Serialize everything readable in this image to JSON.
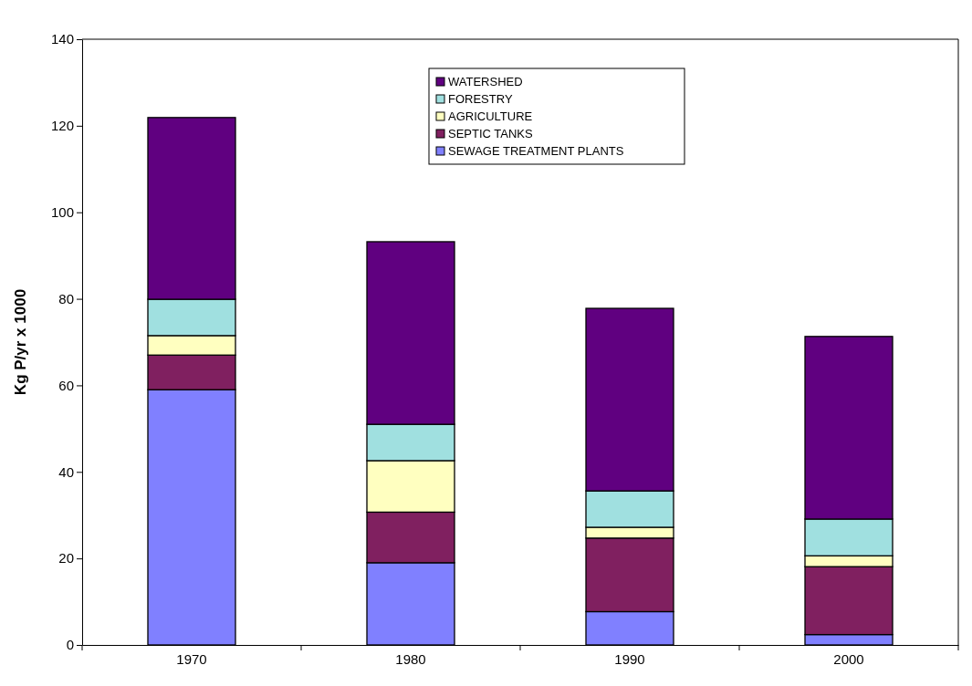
{
  "chart_data": {
    "type": "bar",
    "stacked": true,
    "ylabel": "Kg P/yr x 1000",
    "categories": [
      "1970",
      "1980",
      "1990",
      "2000"
    ],
    "series": [
      {
        "name": "SEWAGE TREATMENT PLANTS",
        "color": "#8080ff",
        "values": [
          59,
          19,
          7.7,
          2.4
        ]
      },
      {
        "name": "SEPTIC TANKS",
        "color": "#802060",
        "values": [
          8,
          11.7,
          17,
          15.7
        ]
      },
      {
        "name": "AGRICULTURE",
        "color": "#ffffc0",
        "values": [
          4.5,
          11.9,
          2.5,
          2.5
        ]
      },
      {
        "name": "FORESTRY",
        "color": "#a0e0e0",
        "values": [
          8.4,
          8.4,
          8.4,
          8.5
        ]
      },
      {
        "name": "WATERSHED",
        "color": "#600080",
        "values": [
          42,
          42.2,
          42.2,
          42.2
        ]
      }
    ],
    "ylim": [
      0,
      140
    ],
    "yticks": [
      0,
      20,
      40,
      60,
      80,
      100,
      120,
      140
    ],
    "legend": "top"
  }
}
